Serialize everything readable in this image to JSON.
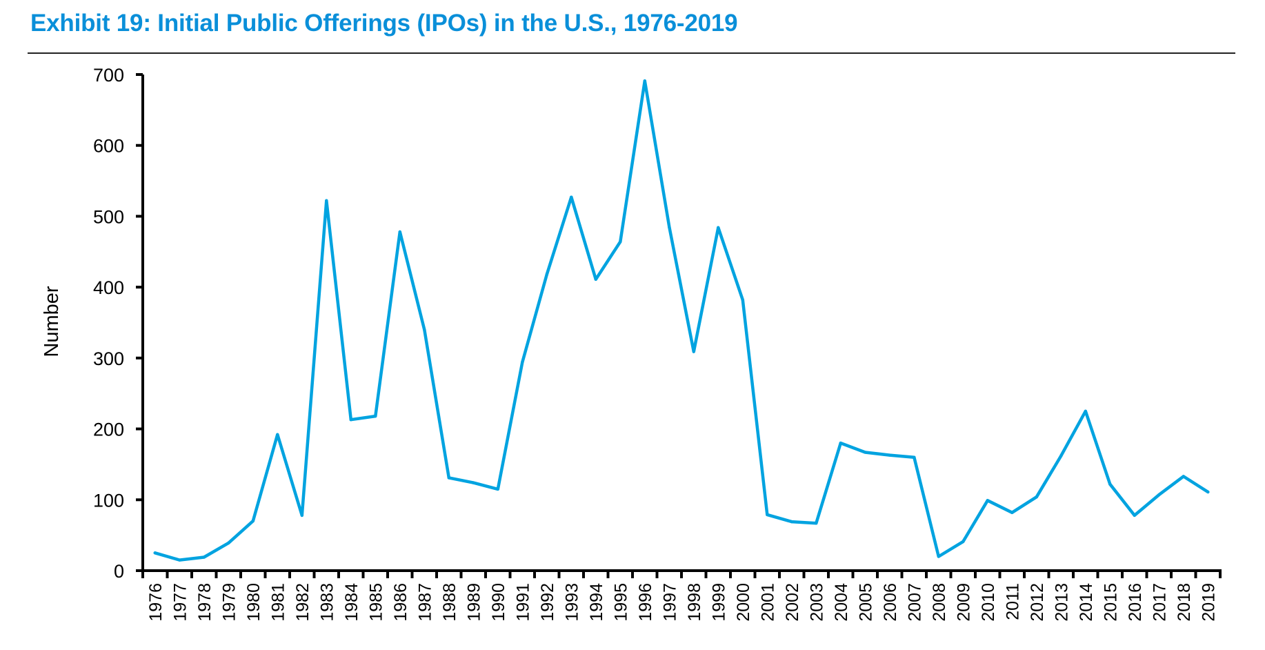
{
  "header": {
    "title": "Exhibit 19: Initial Public Offerings (IPOs) in the U.S., 1976-2019"
  },
  "colors": {
    "title": "#0a8fd9",
    "series_line": "#00a3e0",
    "axis": "#000000"
  },
  "chart_data": {
    "type": "line",
    "title": "Exhibit 19: Initial Public Offerings (IPOs) in the U.S., 1976-2019",
    "xlabel": "",
    "ylabel": "Number",
    "ylim": [
      0,
      700
    ],
    "yticks": [
      0,
      100,
      200,
      300,
      400,
      500,
      600,
      700
    ],
    "grid": false,
    "legend": "none",
    "categories": [
      "1976",
      "1977",
      "1978",
      "1979",
      "1980",
      "1981",
      "1982",
      "1983",
      "1984",
      "1985",
      "1986",
      "1987",
      "1988",
      "1989",
      "1990",
      "1991",
      "1992",
      "1993",
      "1994",
      "1995",
      "1996",
      "1997",
      "1998",
      "1999",
      "2000",
      "2001",
      "2002",
      "2003",
      "2004",
      "2005",
      "2006",
      "2007",
      "2008",
      "2009",
      "2010",
      "2011",
      "2012",
      "2013",
      "2014",
      "2015",
      "2016",
      "2017",
      "2018",
      "2019"
    ],
    "series": [
      {
        "name": "IPOs",
        "values": [
          25,
          15,
          19,
          39,
          70,
          192,
          78,
          522,
          213,
          218,
          478,
          340,
          131,
          124,
          115,
          294,
          418,
          527,
          411,
          464,
          691,
          485,
          309,
          484,
          382,
          79,
          69,
          67,
          180,
          167,
          163,
          160,
          20,
          41,
          99,
          82,
          104,
          162,
          225,
          122,
          78,
          107,
          133,
          111
        ]
      }
    ]
  }
}
